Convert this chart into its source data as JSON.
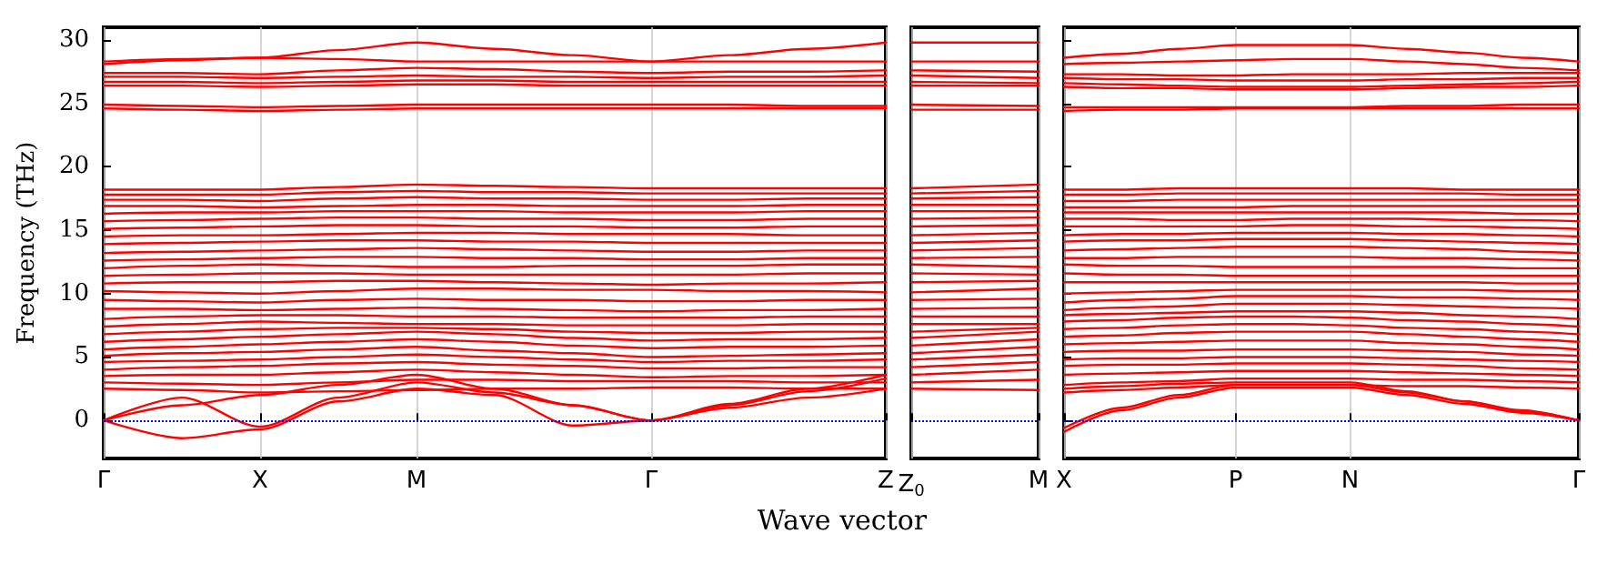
{
  "chart_data": [
    {
      "type": "line",
      "ylabel": "Frequency (THz)",
      "color": "#ff0000",
      "grid": "x",
      "line_style": "solid",
      "marker": "none",
      "categories": [
        "Γ",
        null,
        "X",
        null,
        "M",
        null,
        null,
        "Γ",
        null,
        null,
        "Z"
      ],
      "ylim": [
        -3,
        31
      ],
      "yticks": [
        0,
        5,
        10,
        15,
        20,
        25,
        30
      ],
      "ref_lines": [
        {
          "axis": "y",
          "value": 0,
          "color": "#0000ff",
          "line_style": "dotted"
        }
      ],
      "series": [
        {
          "values": [
            28.3,
            28.5,
            28.6,
            29.2,
            29.8,
            29.3,
            28.8,
            28.3,
            28.8,
            29.3,
            29.8
          ]
        },
        {
          "values": [
            28.1,
            28.4,
            28.6,
            28.5,
            28.3,
            28.3,
            28.3,
            28.3,
            28.3,
            28.3,
            28.3
          ]
        },
        {
          "values": [
            27.4,
            27.4,
            27.3,
            27.6,
            27.8,
            27.7,
            27.5,
            27.4,
            27.5,
            27.5,
            27.6
          ]
        },
        {
          "values": [
            27.1,
            27.1,
            27.0,
            27.1,
            27.2,
            27.1,
            27.1,
            27.0,
            27.1,
            27.1,
            27.2
          ]
        },
        {
          "values": [
            26.7,
            26.7,
            26.6,
            26.7,
            26.8,
            26.8,
            26.7,
            26.7,
            26.7,
            26.7,
            26.7
          ]
        },
        {
          "values": [
            26.4,
            26.4,
            26.3,
            26.4,
            26.5,
            26.5,
            26.4,
            26.4,
            26.4,
            26.4,
            26.4
          ]
        },
        {
          "values": [
            24.9,
            24.8,
            24.7,
            24.8,
            24.9,
            24.9,
            24.9,
            24.9,
            24.9,
            24.8,
            24.8
          ]
        },
        {
          "values": [
            24.6,
            24.5,
            24.4,
            24.5,
            24.6,
            24.6,
            24.6,
            24.6,
            24.6,
            24.6,
            24.6
          ]
        },
        {
          "values": [
            2.5,
            2.4,
            2.2,
            2.3,
            2.4,
            2.5,
            2.5,
            2.6,
            2.6,
            2.5,
            2.5
          ]
        },
        {
          "values": [
            3.0,
            2.9,
            2.8,
            3.0,
            3.2,
            3.2,
            3.1,
            3.1,
            3.1,
            3.0,
            3.0
          ]
        },
        {
          "values": [
            3.5,
            3.6,
            3.6,
            3.8,
            4.0,
            3.8,
            3.6,
            3.4,
            3.5,
            3.5,
            3.6
          ]
        },
        {
          "values": [
            4.0,
            4.2,
            4.3,
            4.5,
            4.6,
            4.4,
            4.3,
            4.1,
            4.1,
            4.2,
            4.2
          ]
        },
        {
          "values": [
            4.6,
            4.7,
            4.8,
            5.0,
            5.2,
            5.0,
            4.8,
            4.6,
            4.7,
            4.7,
            4.8
          ]
        },
        {
          "values": [
            5.1,
            5.3,
            5.4,
            5.6,
            5.8,
            5.5,
            5.3,
            5.0,
            5.1,
            5.2,
            5.3
          ]
        },
        {
          "values": [
            5.6,
            5.8,
            6.0,
            6.2,
            6.4,
            6.2,
            5.9,
            5.7,
            5.8,
            5.8,
            5.9
          ]
        },
        {
          "values": [
            6.2,
            6.4,
            6.6,
            6.8,
            7.0,
            6.8,
            6.5,
            6.3,
            6.4,
            6.4,
            6.5
          ]
        },
        {
          "values": [
            6.8,
            7.0,
            7.2,
            7.3,
            7.3,
            7.2,
            7.0,
            6.9,
            6.9,
            7.0,
            7.0
          ]
        },
        {
          "values": [
            7.4,
            7.6,
            7.8,
            7.7,
            7.6,
            7.6,
            7.5,
            7.5,
            7.5,
            7.6,
            7.6
          ]
        },
        {
          "values": [
            8.0,
            8.2,
            8.3,
            8.3,
            8.2,
            8.2,
            8.1,
            8.1,
            8.1,
            8.2,
            8.2
          ]
        },
        {
          "values": [
            8.8,
            8.8,
            8.7,
            8.8,
            8.9,
            8.8,
            8.7,
            8.6,
            8.7,
            8.7,
            8.8
          ]
        },
        {
          "values": [
            9.5,
            9.4,
            9.3,
            9.5,
            9.6,
            9.5,
            9.5,
            9.4,
            9.4,
            9.5,
            9.5
          ]
        },
        {
          "values": [
            10.2,
            10.1,
            10.0,
            10.2,
            10.4,
            10.4,
            10.3,
            10.3,
            10.2,
            10.2,
            10.1
          ]
        },
        {
          "values": [
            10.8,
            10.9,
            10.9,
            11.0,
            11.0,
            10.9,
            10.8,
            10.7,
            10.8,
            10.8,
            10.9
          ]
        },
        {
          "values": [
            11.4,
            11.5,
            11.6,
            11.6,
            11.5,
            11.5,
            11.5,
            11.5,
            11.5,
            11.6,
            11.6
          ]
        },
        {
          "values": [
            12.0,
            12.2,
            12.3,
            12.2,
            12.1,
            12.1,
            12.2,
            12.2,
            12.2,
            12.3,
            12.3
          ]
        },
        {
          "values": [
            12.6,
            12.7,
            12.8,
            12.9,
            12.9,
            12.8,
            12.8,
            12.7,
            12.7,
            12.8,
            12.8
          ]
        },
        {
          "values": [
            13.2,
            13.3,
            13.4,
            13.5,
            13.6,
            13.5,
            13.4,
            13.3,
            13.3,
            13.4,
            13.4
          ]
        },
        {
          "values": [
            13.9,
            14.0,
            14.1,
            14.2,
            14.2,
            14.1,
            14.1,
            14.0,
            14.0,
            14.0,
            14.0
          ]
        },
        {
          "values": [
            14.5,
            14.6,
            14.6,
            14.7,
            14.8,
            14.8,
            14.7,
            14.7,
            14.7,
            14.6,
            14.6
          ]
        },
        {
          "values": [
            15.1,
            15.2,
            15.3,
            15.4,
            15.4,
            15.3,
            15.3,
            15.2,
            15.2,
            15.3,
            15.3
          ]
        },
        {
          "values": [
            15.7,
            15.8,
            15.9,
            16.0,
            16.0,
            15.9,
            15.9,
            15.8,
            15.8,
            15.9,
            15.9
          ]
        },
        {
          "values": [
            16.3,
            16.4,
            16.4,
            16.5,
            16.5,
            16.5,
            16.4,
            16.4,
            16.4,
            16.5,
            16.5
          ]
        },
        {
          "values": [
            16.9,
            16.9,
            16.8,
            16.9,
            17.0,
            17.0,
            16.9,
            16.9,
            16.9,
            17.0,
            17.0
          ]
        },
        {
          "values": [
            17.4,
            17.4,
            17.3,
            17.5,
            17.6,
            17.5,
            17.5,
            17.4,
            17.4,
            17.5,
            17.5
          ]
        },
        {
          "values": [
            17.8,
            17.8,
            17.8,
            18.0,
            18.1,
            18.0,
            18.0,
            17.9,
            17.9,
            17.9,
            17.9
          ]
        },
        {
          "values": [
            18.2,
            18.2,
            18.2,
            18.4,
            18.6,
            18.5,
            18.4,
            18.3,
            18.3,
            18.3,
            18.3
          ]
        },
        {
          "values": [
            0,
            -1.4,
            -0.7,
            1.5,
            2.5,
            2.0,
            -0.4,
            0,
            1.0,
            1.8,
            2.5
          ]
        },
        {
          "values": [
            0,
            1.8,
            -0.5,
            1.8,
            3.0,
            2.2,
            1.2,
            0,
            1.2,
            2.3,
            3.3
          ]
        },
        {
          "values": [
            0,
            1.2,
            2.0,
            2.8,
            3.6,
            2.5,
            1.2,
            0,
            1.3,
            2.5,
            3.6
          ]
        }
      ]
    },
    {
      "type": "line",
      "xlabel": "Wave vector",
      "color": "#ff0000",
      "grid": "x",
      "line_style": "solid",
      "marker": "none",
      "tick_labels": "x",
      "categories": [
        "Z$_{0}$",
        "M"
      ],
      "ylim": [
        -3,
        31
      ],
      "ref_lines": [
        {
          "axis": "y",
          "value": 0,
          "color": "#0000ff",
          "line_style": "dotted"
        }
      ],
      "series": [
        {
          "values": [
            29.8,
            29.8
          ]
        },
        {
          "values": [
            28.3,
            28.3
          ]
        },
        {
          "values": [
            27.6,
            27.5
          ]
        },
        {
          "values": [
            27.2,
            27.0
          ]
        },
        {
          "values": [
            26.7,
            26.6
          ]
        },
        {
          "values": [
            26.4,
            26.4
          ]
        },
        {
          "values": [
            24.9,
            24.8
          ]
        },
        {
          "values": [
            24.5,
            24.5
          ]
        },
        {
          "values": [
            2.5,
            2.4
          ]
        },
        {
          "values": [
            3.0,
            3.2
          ]
        },
        {
          "values": [
            3.6,
            4.0
          ]
        },
        {
          "values": [
            4.2,
            4.6
          ]
        },
        {
          "values": [
            4.8,
            5.2
          ]
        },
        {
          "values": [
            5.3,
            5.8
          ]
        },
        {
          "values": [
            5.9,
            6.4
          ]
        },
        {
          "values": [
            6.5,
            7.0
          ]
        },
        {
          "values": [
            7.0,
            7.3
          ]
        },
        {
          "values": [
            7.6,
            7.6
          ]
        },
        {
          "values": [
            8.2,
            8.2
          ]
        },
        {
          "values": [
            8.8,
            8.9
          ]
        },
        {
          "values": [
            9.5,
            9.6
          ]
        },
        {
          "values": [
            10.1,
            10.4
          ]
        },
        {
          "values": [
            10.9,
            11.0
          ]
        },
        {
          "values": [
            11.6,
            11.5
          ]
        },
        {
          "values": [
            12.3,
            12.1
          ]
        },
        {
          "values": [
            12.8,
            12.9
          ]
        },
        {
          "values": [
            13.4,
            13.6
          ]
        },
        {
          "values": [
            14.0,
            14.2
          ]
        },
        {
          "values": [
            14.6,
            14.8
          ]
        },
        {
          "values": [
            15.3,
            15.4
          ]
        },
        {
          "values": [
            15.9,
            16.0
          ]
        },
        {
          "values": [
            16.5,
            16.5
          ]
        },
        {
          "values": [
            17.0,
            17.0
          ]
        },
        {
          "values": [
            17.5,
            17.6
          ]
        },
        {
          "values": [
            17.9,
            18.1
          ]
        },
        {
          "values": [
            18.3,
            18.6
          ]
        }
      ]
    },
    {
      "type": "line",
      "color": "#ff0000",
      "grid": "x",
      "line_style": "solid",
      "marker": "none",
      "tick_labels": "x",
      "categories": [
        "X",
        null,
        null,
        "P",
        null,
        "N",
        null,
        null,
        null,
        "Γ"
      ],
      "ylim": [
        -3,
        31
      ],
      "yticks": [
        {
          "value": 0,
          "label": null
        },
        {
          "value": 5,
          "label": null
        },
        {
          "value": 10,
          "label": null
        },
        {
          "value": 15,
          "label": null
        },
        {
          "value": 20,
          "label": null
        },
        {
          "value": 25,
          "label": null
        },
        {
          "value": 30,
          "label": null
        }
      ],
      "ref_lines": [
        {
          "axis": "y",
          "value": 0,
          "color": "#0000ff",
          "line_style": "dotted"
        }
      ],
      "series": [
        {
          "values": [
            28.6,
            28.9,
            29.3,
            29.6,
            29.6,
            29.6,
            29.3,
            29.0,
            28.6,
            28.3
          ]
        },
        {
          "values": [
            28.1,
            28.2,
            28.3,
            28.4,
            28.5,
            28.5,
            28.3,
            28.1,
            27.8,
            27.6
          ]
        },
        {
          "values": [
            27.3,
            27.3,
            27.2,
            27.2,
            27.3,
            27.3,
            27.3,
            27.4,
            27.4,
            27.4
          ]
        },
        {
          "values": [
            27.0,
            26.9,
            26.9,
            26.8,
            26.8,
            26.8,
            26.9,
            26.9,
            27.0,
            27.0
          ]
        },
        {
          "values": [
            26.6,
            26.5,
            26.4,
            26.3,
            26.3,
            26.3,
            26.4,
            26.5,
            26.6,
            26.7
          ]
        },
        {
          "values": [
            26.3,
            26.2,
            26.2,
            26.1,
            26.1,
            26.1,
            26.2,
            26.3,
            26.3,
            26.4
          ]
        },
        {
          "values": [
            24.7,
            24.7,
            24.7,
            24.7,
            24.7,
            24.7,
            24.8,
            24.8,
            24.9,
            24.9
          ]
        },
        {
          "values": [
            24.4,
            24.5,
            24.5,
            24.6,
            24.6,
            24.6,
            24.6,
            24.6,
            24.6,
            24.6
          ]
        },
        {
          "values": [
            2.2,
            2.4,
            2.6,
            2.8,
            2.8,
            2.8,
            2.7,
            2.7,
            2.6,
            2.5
          ]
        },
        {
          "values": [
            2.8,
            3.0,
            3.1,
            3.3,
            3.3,
            3.3,
            3.2,
            3.2,
            3.1,
            3.0
          ]
        },
        {
          "values": [
            3.6,
            3.7,
            3.8,
            3.9,
            3.9,
            3.9,
            3.8,
            3.7,
            3.6,
            3.5
          ]
        },
        {
          "values": [
            4.3,
            4.4,
            4.4,
            4.5,
            4.5,
            4.5,
            4.4,
            4.3,
            4.1,
            4.0
          ]
        },
        {
          "values": [
            4.8,
            4.9,
            4.9,
            5.0,
            5.0,
            5.0,
            4.9,
            4.8,
            4.7,
            4.6
          ]
        },
        {
          "values": [
            5.4,
            5.5,
            5.5,
            5.6,
            5.6,
            5.6,
            5.5,
            5.4,
            5.2,
            5.1
          ]
        },
        {
          "values": [
            6.0,
            6.1,
            6.2,
            6.3,
            6.3,
            6.3,
            6.1,
            6.0,
            5.8,
            5.6
          ]
        },
        {
          "values": [
            6.6,
            6.7,
            6.9,
            7.0,
            7.0,
            7.0,
            6.8,
            6.6,
            6.4,
            6.2
          ]
        },
        {
          "values": [
            7.2,
            7.3,
            7.5,
            7.6,
            7.6,
            7.5,
            7.3,
            7.2,
            7.0,
            6.8
          ]
        },
        {
          "values": [
            7.8,
            7.9,
            8.1,
            8.2,
            8.2,
            8.1,
            7.9,
            7.8,
            7.6,
            7.4
          ]
        },
        {
          "values": [
            8.3,
            8.4,
            8.5,
            8.6,
            8.6,
            8.6,
            8.5,
            8.3,
            8.2,
            8.0
          ]
        },
        {
          "values": [
            8.7,
            8.9,
            9.0,
            9.2,
            9.2,
            9.2,
            9.1,
            9.0,
            8.9,
            8.8
          ]
        },
        {
          "values": [
            9.3,
            9.5,
            9.6,
            9.8,
            9.8,
            9.8,
            9.7,
            9.7,
            9.6,
            9.5
          ]
        },
        {
          "values": [
            10.0,
            10.1,
            10.2,
            10.3,
            10.3,
            10.3,
            10.3,
            10.3,
            10.2,
            10.2
          ]
        },
        {
          "values": [
            10.9,
            10.9,
            10.9,
            10.9,
            10.9,
            10.9,
            10.9,
            10.9,
            10.8,
            10.8
          ]
        },
        {
          "values": [
            11.6,
            11.5,
            11.5,
            11.4,
            11.4,
            11.4,
            11.4,
            11.4,
            11.4,
            11.4
          ]
        },
        {
          "values": [
            12.3,
            12.2,
            12.2,
            12.1,
            12.1,
            12.1,
            12.1,
            12.1,
            12.0,
            12.0
          ]
        },
        {
          "values": [
            12.8,
            12.8,
            12.9,
            12.9,
            12.9,
            12.9,
            12.8,
            12.8,
            12.7,
            12.6
          ]
        },
        {
          "values": [
            13.4,
            13.5,
            13.6,
            13.7,
            13.7,
            13.7,
            13.6,
            13.5,
            13.3,
            13.2
          ]
        },
        {
          "values": [
            14.1,
            14.2,
            14.2,
            14.3,
            14.3,
            14.3,
            14.2,
            14.1,
            14.0,
            13.9
          ]
        },
        {
          "values": [
            14.6,
            14.7,
            14.7,
            14.8,
            14.8,
            14.8,
            14.7,
            14.7,
            14.6,
            14.5
          ]
        },
        {
          "values": [
            15.3,
            15.3,
            15.3,
            15.3,
            15.4,
            15.4,
            15.3,
            15.3,
            15.2,
            15.1
          ]
        },
        {
          "values": [
            15.9,
            15.9,
            15.8,
            15.8,
            15.9,
            15.9,
            15.9,
            15.8,
            15.8,
            15.7
          ]
        },
        {
          "values": [
            16.4,
            16.4,
            16.4,
            16.4,
            16.4,
            16.4,
            16.4,
            16.4,
            16.3,
            16.3
          ]
        },
        {
          "values": [
            16.8,
            16.8,
            16.8,
            16.8,
            16.9,
            16.9,
            16.9,
            16.9,
            16.9,
            16.9
          ]
        },
        {
          "values": [
            17.3,
            17.3,
            17.4,
            17.4,
            17.4,
            17.4,
            17.4,
            17.4,
            17.4,
            17.4
          ]
        },
        {
          "values": [
            17.8,
            17.8,
            17.9,
            17.9,
            17.9,
            17.9,
            17.9,
            17.9,
            17.8,
            17.8
          ]
        },
        {
          "values": [
            18.2,
            18.2,
            18.3,
            18.3,
            18.3,
            18.3,
            18.3,
            18.2,
            18.2,
            18.2
          ]
        },
        {
          "values": [
            -0.9,
            0.8,
            1.8,
            2.6,
            2.6,
            2.6,
            2.0,
            1.3,
            0.6,
            0
          ]
        },
        {
          "values": [
            -0.6,
            1.0,
            2.0,
            2.8,
            2.8,
            2.8,
            2.2,
            1.5,
            0.7,
            0
          ]
        },
        {
          "values": [
            2.5,
            2.7,
            2.9,
            3.0,
            3.0,
            3.0,
            2.3,
            1.5,
            0.8,
            0
          ]
        }
      ]
    }
  ]
}
